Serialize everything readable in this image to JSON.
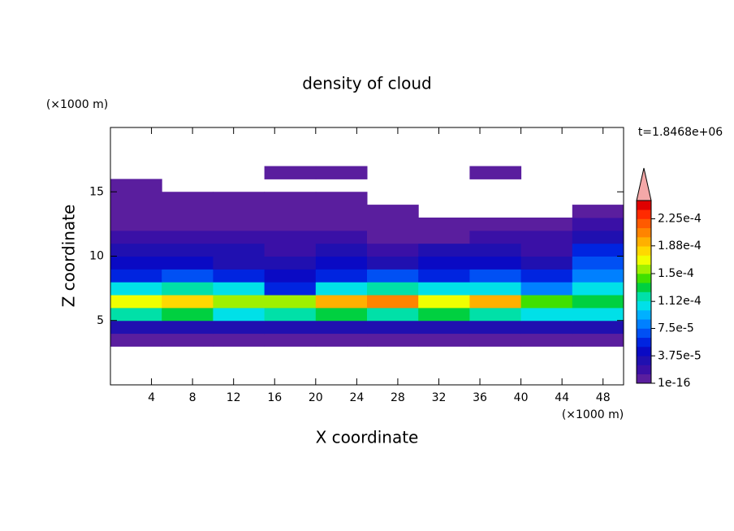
{
  "chart_data": {
    "type": "contour",
    "title": "density of cloud",
    "x_label": "X coordinate",
    "y_label": "Z coordinate",
    "x_unit": "(×1000 m)",
    "y_unit": "(×1000 m)",
    "time_label": "t=1.8468e+06",
    "xlim": [
      0,
      50
    ],
    "xticks": [
      4,
      8,
      12,
      16,
      20,
      24,
      28,
      32,
      36,
      40,
      44,
      48
    ],
    "ylim": [
      0,
      20
    ],
    "yticks": [
      5,
      10,
      15
    ],
    "x": [
      2.5,
      7.5,
      12.5,
      17.5,
      22.5,
      27.5,
      32.5,
      37.5,
      42.5,
      47.5
    ],
    "y": [
      3.5,
      4.5,
      5.5,
      6.5,
      7.5,
      8.5,
      9.5,
      10.5,
      11.5,
      12.5,
      13.5,
      14.5,
      15.5,
      16.5
    ],
    "z": [
      [
        5e-06,
        5e-06,
        5e-06,
        5e-06,
        5e-06,
        5e-06,
        5e-06,
        5e-06,
        5e-06,
        5e-06
      ],
      [
        3e-05,
        3e-05,
        3e-05,
        3e-05,
        3e-05,
        3e-05,
        3e-05,
        3e-05,
        3e-05,
        3e-05
      ],
      [
        0.00012,
        0.00013,
        0.00011,
        0.00012,
        0.00013,
        0.00012,
        0.00013,
        0.00012,
        0.00011,
        0.0001
      ],
      [
        0.00017,
        0.00018,
        0.00016,
        0.00015,
        0.00019,
        0.0002,
        0.00017,
        0.00019,
        0.00014,
        0.00013
      ],
      [
        0.0001,
        0.00012,
        0.0001,
        6e-05,
        0.00011,
        0.00012,
        0.0001,
        0.00011,
        8e-05,
        0.00011
      ],
      [
        6e-05,
        7e-05,
        6e-05,
        4e-05,
        6e-05,
        7e-05,
        6e-05,
        7e-05,
        5e-05,
        8e-05
      ],
      [
        4e-05,
        4e-05,
        3e-05,
        3e-05,
        4e-05,
        3e-05,
        4e-05,
        4e-05,
        3e-05,
        7e-05
      ],
      [
        2.5e-05,
        3e-05,
        2.5e-05,
        2e-05,
        2.5e-05,
        2e-05,
        2.5e-05,
        3e-05,
        2e-05,
        6e-05
      ],
      [
        1.5e-05,
        1.5e-05,
        2e-05,
        1.5e-05,
        1.5e-05,
        1e-05,
        1e-05,
        1.5e-05,
        1.5e-05,
        3e-05
      ],
      [
        5e-06,
        1e-05,
        1e-05,
        1e-05,
        1e-05,
        5e-06,
        5e-06,
        5e-06,
        1e-05,
        2e-05
      ],
      [
        5e-06,
        5e-06,
        5e-06,
        5e-06,
        5e-06,
        5e-06,
        null,
        null,
        null,
        5e-06
      ],
      [
        5e-06,
        5e-06,
        5e-06,
        5e-06,
        5e-06,
        null,
        null,
        null,
        null,
        null
      ],
      [
        5e-06,
        null,
        null,
        null,
        null,
        null,
        null,
        null,
        null,
        null
      ],
      [
        null,
        null,
        null,
        5e-06,
        5e-06,
        null,
        null,
        5e-06,
        null,
        null
      ]
    ],
    "clim": [
      0,
      0.00025
    ],
    "colors": [
      "#5a1e9e",
      "#3a10a6",
      "#2010b0",
      "#0a0ac4",
      "#0024e0",
      "#0050f4",
      "#0080ff",
      "#00b0ff",
      "#00e0e8",
      "#00e0a8",
      "#00d040",
      "#40e000",
      "#a0f000",
      "#f0ff00",
      "#ffd800",
      "#ffb000",
      "#ff8400",
      "#ff5a00",
      "#ff2a00",
      "#e00000"
    ],
    "extend_color": "#f4a8a8",
    "cticks": [
      {
        "value": 1e-16,
        "label": "1e-16"
      },
      {
        "value": 3.75e-05,
        "label": "3.75e-5"
      },
      {
        "value": 7.5e-05,
        "label": "7.5e-5"
      },
      {
        "value": 0.000112,
        "label": "1.12e-4"
      },
      {
        "value": 0.00015,
        "label": "1.5e-4"
      },
      {
        "value": 0.000188,
        "label": "1.88e-4"
      },
      {
        "value": 0.000225,
        "label": "2.25e-4"
      }
    ]
  }
}
